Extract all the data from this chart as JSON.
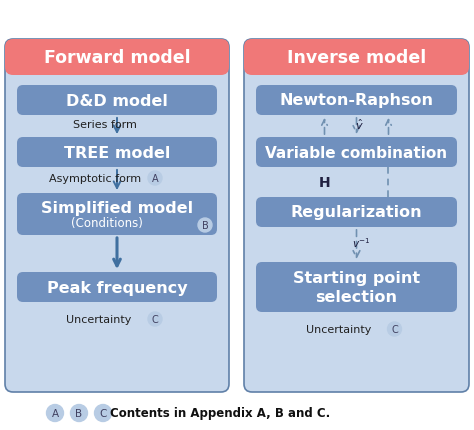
{
  "bg_color": "#ffffff",
  "panel_bg": "#c8d8ec",
  "panel_border": "#6080a8",
  "header_color": "#f07878",
  "box_color": "#7090be",
  "box_text_color": "#ffffff",
  "arrow_color": "#4070a0",
  "dashed_color": "#7090b0",
  "label_color": "#202020",
  "circle_color": "#b8cce4",
  "circle_text_color": "#404060",
  "forward_title": "Forward model",
  "inverse_title": "Inverse model",
  "forward_boxes": [
    "D&D model",
    "TREE model",
    "Simplified model",
    "Peak frequency"
  ],
  "forward_sub": "(Conditions)",
  "inverse_boxes": [
    "Newton-Raphson",
    "Variable combination",
    "Regularization",
    "Starting point\nselection"
  ],
  "legend_text": "Contents in Appendix A, B and C.",
  "legend_letters": [
    "A",
    "B",
    "C"
  ],
  "figsize": [
    4.74,
    4.31
  ],
  "dpi": 100
}
